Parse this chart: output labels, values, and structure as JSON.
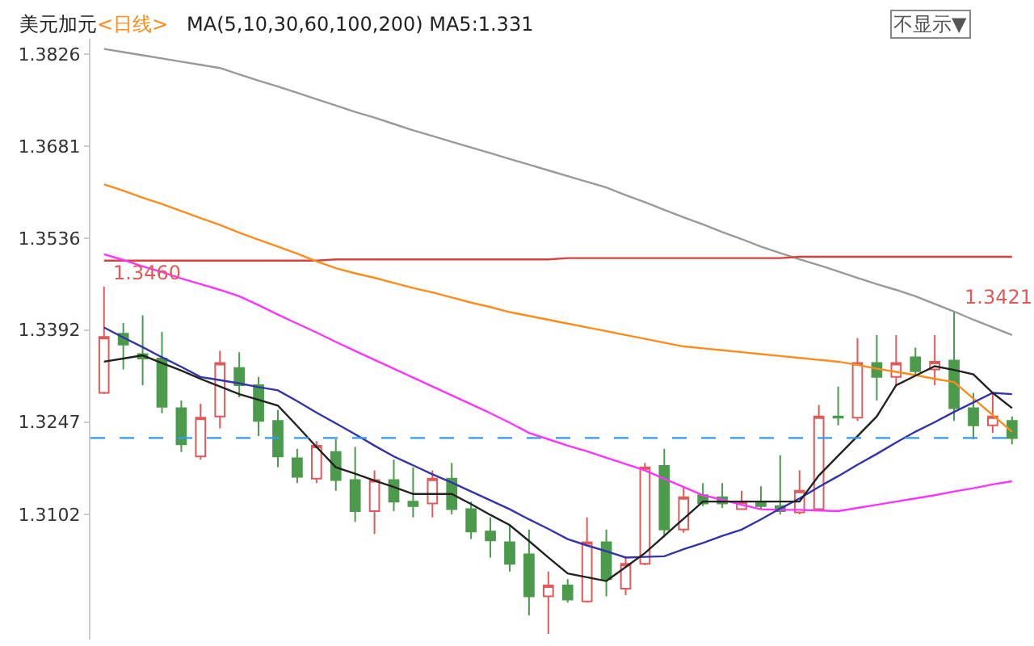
{
  "chart_data": {
    "type": "candlestick",
    "title": "美元加元",
    "subtitle": "<日线>",
    "annotations": [
      "MA(5,10,30,60,100,200) MA5:1.331",
      "不显示▼",
      "1.3460",
      "1.3421"
    ],
    "categories": [
      null,
      null,
      null,
      null,
      null,
      null,
      null,
      null,
      null,
      null,
      null,
      null,
      null,
      null,
      null,
      null,
      null,
      null,
      null,
      null,
      null,
      null,
      null,
      null,
      null,
      null,
      null,
      null,
      null,
      null,
      null,
      null,
      null,
      null,
      null,
      null,
      null,
      null,
      null,
      null,
      null,
      null,
      null,
      null,
      null,
      null,
      null,
      null
    ],
    "ohlc": [
      [
        1.3293,
        1.346,
        1.3291,
        1.3381
      ],
      [
        1.3386,
        1.3403,
        1.333,
        1.3369
      ],
      [
        1.3354,
        1.3415,
        1.3305,
        1.3347
      ],
      [
        1.3347,
        1.3389,
        1.3261,
        1.3271
      ],
      [
        1.3269,
        1.3281,
        1.32,
        1.3212
      ],
      [
        1.3193,
        1.3276,
        1.3188,
        1.3254
      ],
      [
        1.3256,
        1.3359,
        1.3237,
        1.334
      ],
      [
        1.3332,
        1.3357,
        1.3286,
        1.3305
      ],
      [
        1.3305,
        1.3318,
        1.3225,
        1.3249
      ],
      [
        1.3249,
        1.3266,
        1.3176,
        1.3193
      ],
      [
        1.319,
        1.3205,
        1.3151,
        1.3161
      ],
      [
        1.3158,
        1.3217,
        1.3151,
        1.321
      ],
      [
        1.32,
        1.322,
        1.3139,
        1.3156
      ],
      [
        1.3156,
        1.3208,
        1.309,
        1.3107
      ],
      [
        1.3107,
        1.3171,
        1.3071,
        1.3156
      ],
      [
        1.3156,
        1.3188,
        1.3107,
        1.3122
      ],
      [
        1.3122,
        1.3176,
        1.3097,
        1.3115
      ],
      [
        1.3119,
        1.3171,
        1.3097,
        1.3158
      ],
      [
        1.3158,
        1.3183,
        1.3102,
        1.311
      ],
      [
        1.311,
        1.3122,
        1.3063,
        1.3075
      ],
      [
        1.3075,
        1.3097,
        1.3034,
        1.3061
      ],
      [
        1.3058,
        1.3085,
        1.3012,
        1.3024
      ],
      [
        1.3039,
        1.3078,
        1.2943,
        1.2973
      ],
      [
        1.2973,
        1.3012,
        1.2914,
        1.299
      ],
      [
        1.299,
        1.3,
        1.2963,
        1.2968
      ],
      [
        1.2965,
        1.3097,
        1.2963,
        1.3058
      ],
      [
        1.3058,
        1.3078,
        1.2973,
        1.3
      ],
      [
        1.2985,
        1.3036,
        1.2975,
        1.3024
      ],
      [
        1.3024,
        1.3183,
        1.3022,
        1.3176
      ],
      [
        1.3178,
        1.3205,
        1.3066,
        1.3078
      ],
      [
        1.3078,
        1.3144,
        1.3073,
        1.3129
      ],
      [
        1.3132,
        1.3151,
        1.3115,
        1.3119
      ],
      [
        1.3129,
        1.3151,
        1.3112,
        1.3119
      ],
      [
        1.311,
        1.3139,
        1.311,
        1.3122
      ],
      [
        1.3122,
        1.3146,
        1.311,
        1.3115
      ],
      [
        1.3115,
        1.3195,
        1.3102,
        1.3107
      ],
      [
        1.3105,
        1.3171,
        1.3102,
        1.3139
      ],
      [
        1.311,
        1.3274,
        1.311,
        1.3256
      ],
      [
        1.3256,
        1.3303,
        1.3242,
        1.3254
      ],
      [
        1.3254,
        1.3379,
        1.3249,
        1.334
      ],
      [
        1.334,
        1.3384,
        1.3281,
        1.3318
      ],
      [
        1.3318,
        1.3384,
        1.3303,
        1.334
      ],
      [
        1.3349,
        1.3364,
        1.3322,
        1.3327
      ],
      [
        1.333,
        1.3384,
        1.3305,
        1.3342
      ],
      [
        1.3344,
        1.3421,
        1.3249,
        1.3269
      ],
      [
        1.3269,
        1.3293,
        1.322,
        1.3242
      ],
      [
        1.3242,
        1.3291,
        1.323,
        1.3256
      ],
      [
        1.3249,
        1.3256,
        1.3212,
        1.3222
      ]
    ],
    "colors": [
      "#e05a5a",
      "#4c9a4c",
      "#4c9a4c",
      "#4c9a4c",
      "#4c9a4c",
      "#e05a5a",
      "#e05a5a",
      "#4c9a4c",
      "#4c9a4c",
      "#4c9a4c",
      "#4c9a4c",
      "#e05a5a",
      "#4c9a4c",
      "#4c9a4c",
      "#e05a5a",
      "#4c9a4c",
      "#4c9a4c",
      "#e05a5a",
      "#4c9a4c",
      "#4c9a4c",
      "#4c9a4c",
      "#4c9a4c",
      "#4c9a4c",
      "#e05a5a",
      "#4c9a4c",
      "#e05a5a",
      "#4c9a4c",
      "#e05a5a",
      "#e05a5a",
      "#4c9a4c",
      "#e05a5a",
      "#4c9a4c",
      "#4c9a4c",
      "#e05a5a",
      "#4c9a4c",
      "#4c9a4c",
      "#e05a5a",
      "#e05a5a",
      "#4c9a4c",
      "#e05a5a",
      "#4c9a4c",
      "#e05a5a",
      "#4c9a4c",
      "#e05a5a",
      "#4c9a4c",
      "#4c9a4c",
      "#e05a5a",
      "#4c9a4c"
    ],
    "series": [
      {
        "type": "line",
        "color": "#999999",
        "values": [
          1.3834,
          1.3829,
          1.3824,
          1.3819,
          1.3814,
          1.3809,
          1.3804,
          1.3794,
          1.3784,
          1.3775,
          1.3765,
          1.3755,
          1.3745,
          1.3735,
          1.3726,
          1.3716,
          1.3706,
          1.3697,
          1.3688,
          1.3679,
          1.367,
          1.3661,
          1.3652,
          1.3643,
          1.3634,
          1.3625,
          1.3616,
          1.3604,
          1.3593,
          1.3581,
          1.3569,
          1.3558,
          1.3546,
          1.3535,
          1.3523,
          1.3513,
          1.3503,
          1.3494,
          1.3484,
          1.3474,
          1.3464,
          1.3455,
          1.3445,
          1.3433,
          1.3421,
          1.3408,
          1.3396,
          1.3384
        ]
      },
      {
        "type": "line",
        "color": "#d94040",
        "values": [
          1.3501,
          1.3501,
          1.3501,
          1.3501,
          1.3501,
          1.3501,
          1.3501,
          1.3501,
          1.3501,
          1.3501,
          1.3501,
          1.3501,
          1.3503,
          1.3503,
          1.3503,
          1.3503,
          1.3503,
          1.3503,
          1.3503,
          1.3503,
          1.3503,
          1.3503,
          1.3503,
          1.3503,
          1.3505,
          1.3505,
          1.3505,
          1.3505,
          1.3505,
          1.3505,
          1.3505,
          1.3505,
          1.3505,
          1.3505,
          1.3505,
          1.3505,
          1.3507,
          1.3507,
          1.3507,
          1.3507,
          1.3507,
          1.3507,
          1.3507,
          1.3507,
          1.3507,
          1.3507,
          1.3507,
          1.3507
        ]
      },
      {
        "type": "line",
        "color": "#ff8c1a",
        "values": [
          1.3621,
          1.3611,
          1.36,
          1.359,
          1.3579,
          1.3568,
          1.3557,
          1.3545,
          1.3534,
          1.3523,
          1.3512,
          1.35,
          1.3489,
          1.3481,
          1.3474,
          1.3466,
          1.3458,
          1.3451,
          1.3443,
          1.3435,
          1.3428,
          1.342,
          1.3414,
          1.3408,
          1.3402,
          1.3396,
          1.339,
          1.3384,
          1.3378,
          1.3372,
          1.3366,
          1.3363,
          1.336,
          1.3357,
          1.3354,
          1.3351,
          1.3348,
          1.3345,
          1.3342,
          1.3337,
          1.3331,
          1.3326,
          1.3321,
          1.3315,
          1.331,
          1.3284,
          1.3258,
          1.3232
        ]
      },
      {
        "type": "line",
        "color": "#ff33ff",
        "values": [
          1.3511,
          1.3502,
          1.3492,
          1.3483,
          1.3473,
          1.3464,
          1.3455,
          1.3445,
          1.3431,
          1.3416,
          1.3402,
          1.3388,
          1.3373,
          1.3359,
          1.3345,
          1.3331,
          1.3317,
          1.3303,
          1.3289,
          1.3275,
          1.3261,
          1.3246,
          1.323,
          1.322,
          1.321,
          1.3201,
          1.3191,
          1.3181,
          1.3171,
          1.3158,
          1.3145,
          1.3132,
          1.3125,
          1.3117,
          1.311,
          1.3109,
          1.3109,
          1.3108,
          1.3107,
          1.3112,
          1.3117,
          1.3122,
          1.3127,
          1.3132,
          1.3138,
          1.3143,
          1.3149,
          1.3154
        ]
      },
      {
        "type": "line",
        "color": "#3333aa",
        "values": [
          1.3396,
          1.338,
          1.3365,
          1.3349,
          1.3334,
          1.3318,
          1.3313,
          1.3308,
          1.3302,
          1.3297,
          1.328,
          1.3262,
          1.3245,
          1.3228,
          1.321,
          1.3193,
          1.3179,
          1.3165,
          1.3152,
          1.3138,
          1.3124,
          1.311,
          1.3094,
          1.3079,
          1.3063,
          1.3053,
          1.3044,
          1.3034,
          1.3035,
          1.3036,
          1.3047,
          1.3057,
          1.3068,
          1.3078,
          1.3094,
          1.3111,
          1.3127,
          1.3145,
          1.3162,
          1.318,
          1.3197,
          1.3215,
          1.3232,
          1.3247,
          1.3263,
          1.3278,
          1.3293,
          1.3291
        ]
      },
      {
        "type": "line",
        "color": "#222222",
        "values": [
          1.3342,
          1.3347,
          1.3352,
          1.334,
          1.3328,
          1.3315,
          1.3303,
          1.3291,
          1.3282,
          1.3273,
          1.3241,
          1.3208,
          1.3176,
          1.3166,
          1.3155,
          1.3145,
          1.3134,
          1.3134,
          1.3134,
          1.3118,
          1.3101,
          1.3085,
          1.306,
          1.3034,
          1.3009,
          1.3003,
          1.2997,
          1.3019,
          1.3041,
          1.3068,
          1.3095,
          1.3122,
          1.3122,
          1.3122,
          1.3122,
          1.3122,
          1.3122,
          1.3163,
          1.3194,
          1.3225,
          1.3256,
          1.3305,
          1.332,
          1.3335,
          1.3329,
          1.3322,
          1.3293,
          1.3269
        ]
      }
    ],
    "ref_lines": [
      {
        "axis": "y",
        "value": 1.3222,
        "color": "#3399ff",
        "line_style": "dashed"
      }
    ],
    "ylim": [
      1.2905,
      1.385
    ],
    "yticks": [
      1.3826,
      1.3681,
      1.3536,
      1.3392,
      1.3247,
      1.3102
    ],
    "tick_labels": "y",
    "marker": "none",
    "line_style": "solid"
  }
}
